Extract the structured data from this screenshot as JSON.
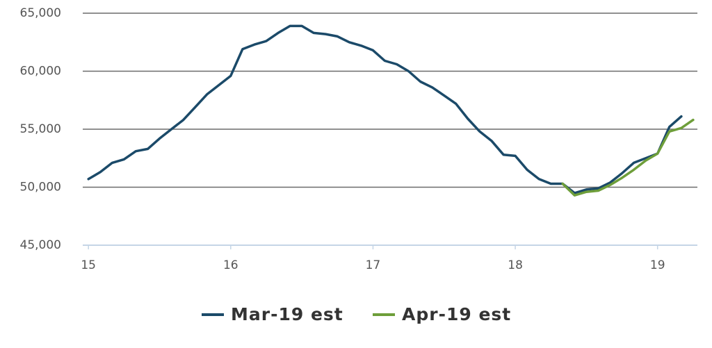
{
  "chart_data": {
    "type": "line",
    "x": [
      15,
      15.083,
      15.167,
      15.25,
      15.333,
      15.417,
      15.5,
      15.583,
      15.667,
      15.75,
      15.833,
      15.917,
      16,
      16.083,
      16.167,
      16.25,
      16.333,
      16.417,
      16.5,
      16.583,
      16.667,
      16.75,
      16.833,
      16.917,
      17,
      17.083,
      17.167,
      17.25,
      17.333,
      17.417,
      17.5,
      17.583,
      17.667,
      17.75,
      17.833,
      17.917,
      18,
      18.083,
      18.167,
      18.25,
      18.333,
      18.417,
      18.5,
      18.583,
      18.667,
      18.75,
      18.833,
      18.917,
      19,
      19.083,
      19.167,
      19.25
    ],
    "series": [
      {
        "name": "Mar-19 est",
        "color": "#1b4a69",
        "values": [
          50700,
          51300,
          52100,
          52400,
          53100,
          53300,
          54200,
          55000,
          55800,
          56900,
          58000,
          58800,
          59600,
          61900,
          62300,
          62600,
          63300,
          63900,
          63900,
          63300,
          63200,
          63000,
          62500,
          62200,
          61800,
          60900,
          60600,
          60000,
          59100,
          58600,
          57900,
          57200,
          55900,
          54800,
          54000,
          52800,
          52700,
          51500,
          50700,
          50300,
          50300,
          49500,
          49800,
          49900,
          50400,
          51200,
          52100,
          52500,
          52900,
          55200,
          56100,
          null
        ]
      },
      {
        "name": "Apr-19 est",
        "color": "#6e9e3a",
        "values": [
          null,
          null,
          null,
          null,
          null,
          null,
          null,
          null,
          null,
          null,
          null,
          null,
          null,
          null,
          null,
          null,
          null,
          null,
          null,
          null,
          null,
          null,
          null,
          null,
          null,
          null,
          null,
          null,
          null,
          null,
          null,
          null,
          null,
          null,
          null,
          null,
          null,
          null,
          null,
          null,
          50300,
          49300,
          49600,
          49700,
          50200,
          50800,
          51500,
          52300,
          52900,
          54800,
          55100,
          55800
        ]
      }
    ],
    "xlim": [
      14.96,
      19.28
    ],
    "xticks": [
      15,
      16,
      17,
      18,
      19
    ],
    "ylim": [
      45000,
      65000
    ],
    "yticks": [
      {
        "value": 45000,
        "label": "45,000"
      },
      {
        "value": 50000,
        "label": "50,000"
      },
      {
        "value": 55000,
        "label": "55,000"
      },
      {
        "value": 60000,
        "label": "60,000"
      },
      {
        "value": 65000,
        "label": "65,000"
      }
    ],
    "grid": true,
    "legend": "bottom"
  }
}
